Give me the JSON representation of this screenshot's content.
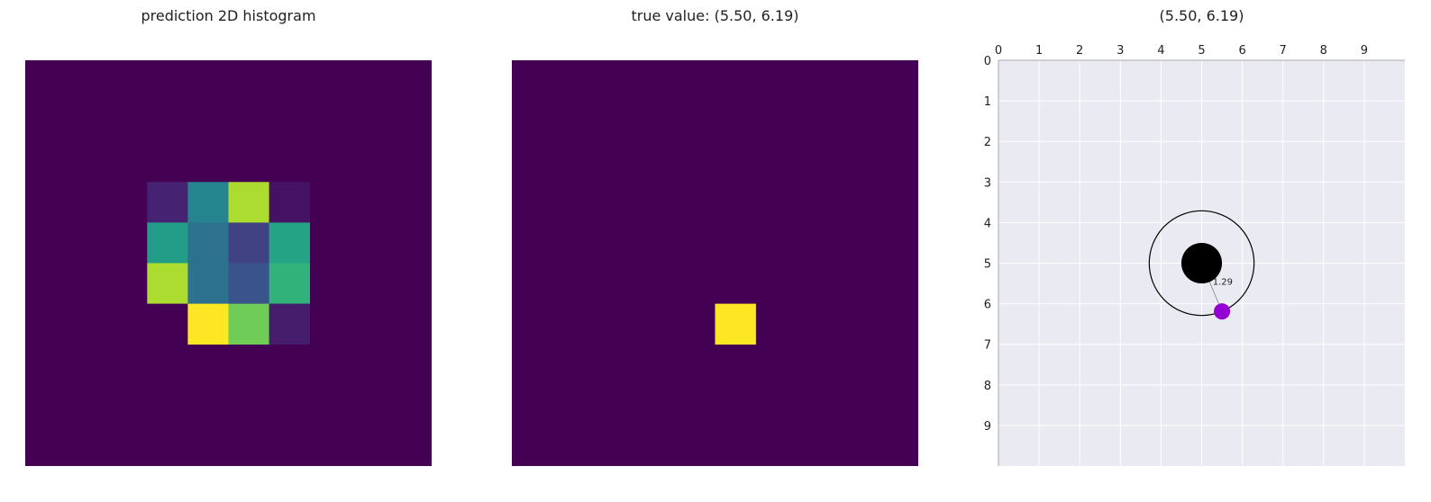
{
  "chart_data": [
    {
      "type": "heatmap",
      "title": "prediction 2D histogram",
      "grid_size": 10,
      "colormap": "viridis",
      "background_color": "#440154",
      "cells": [
        {
          "row": 3,
          "col": 3,
          "value": 0.1
        },
        {
          "row": 3,
          "col": 4,
          "value": 0.45
        },
        {
          "row": 3,
          "col": 5,
          "value": 0.88
        },
        {
          "row": 3,
          "col": 6,
          "value": 0.05
        },
        {
          "row": 4,
          "col": 3,
          "value": 0.55
        },
        {
          "row": 4,
          "col": 4,
          "value": 0.38
        },
        {
          "row": 4,
          "col": 5,
          "value": 0.2
        },
        {
          "row": 4,
          "col": 6,
          "value": 0.58
        },
        {
          "row": 5,
          "col": 3,
          "value": 0.88
        },
        {
          "row": 5,
          "col": 4,
          "value": 0.38
        },
        {
          "row": 5,
          "col": 5,
          "value": 0.26
        },
        {
          "row": 5,
          "col": 6,
          "value": 0.65
        },
        {
          "row": 6,
          "col": 3,
          "value": 0.0
        },
        {
          "row": 6,
          "col": 4,
          "value": 1.0
        },
        {
          "row": 6,
          "col": 5,
          "value": 0.78
        },
        {
          "row": 6,
          "col": 6,
          "value": 0.08
        }
      ]
    },
    {
      "type": "heatmap",
      "title": "true value: (5.50, 6.19)",
      "grid_size": 10,
      "colormap": "viridis",
      "background_color": "#440154",
      "cells": [
        {
          "row": 6,
          "col": 5,
          "value": 1.0
        }
      ]
    },
    {
      "type": "scatter",
      "title": "(5.50, 6.19)",
      "xlim": [
        0,
        10
      ],
      "ylim": [
        10,
        0
      ],
      "x_ticks": [
        "0",
        "1",
        "2",
        "3",
        "4",
        "5",
        "6",
        "7",
        "8",
        "9"
      ],
      "y_ticks": [
        "0",
        "1",
        "2",
        "3",
        "4",
        "5",
        "6",
        "7",
        "8",
        "9"
      ],
      "x_axis_position": "top",
      "grid": true,
      "background_color": "#eaeaf2",
      "points": [
        {
          "name": "prediction",
          "x": 5.0,
          "y": 5.0,
          "color": "#000000",
          "size": 1.0
        },
        {
          "name": "true",
          "x": 5.5,
          "y": 6.19,
          "color": "#9400d3",
          "size": 0.4
        }
      ],
      "circle": {
        "cx": 5.0,
        "cy": 5.0,
        "r": 1.29
      },
      "distance_label": "1.29"
    }
  ]
}
